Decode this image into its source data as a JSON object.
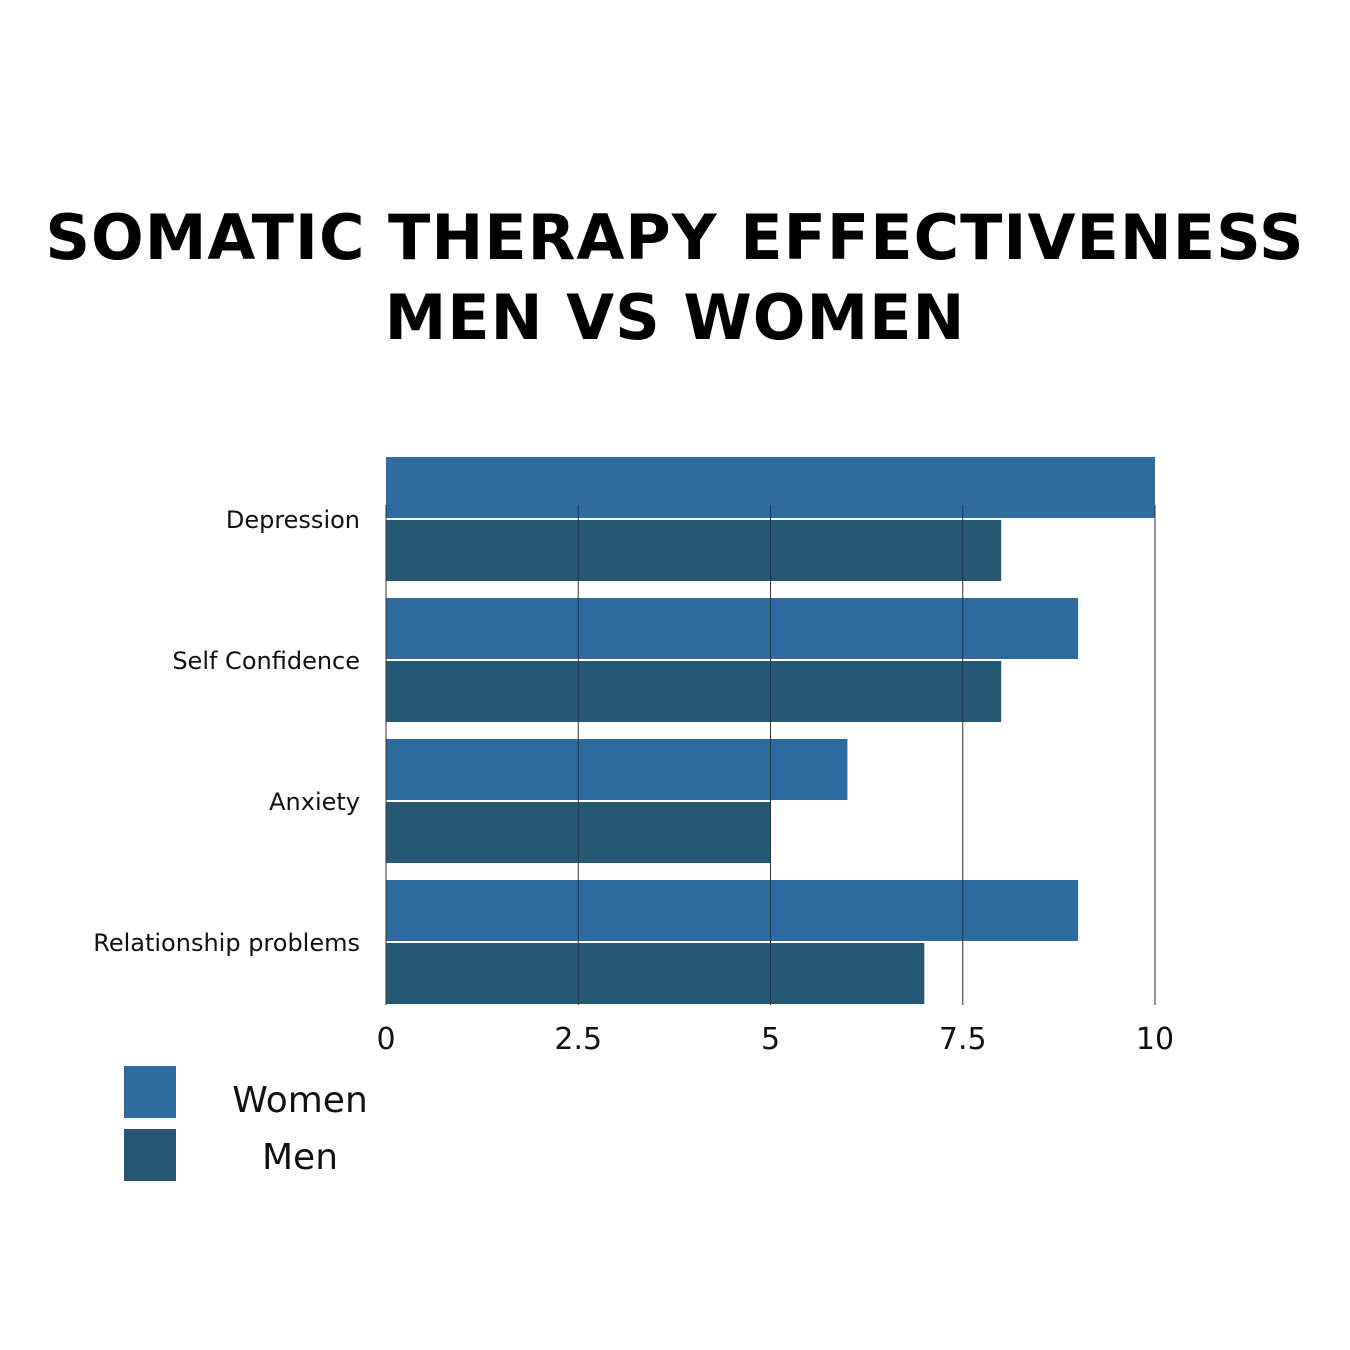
{
  "chart_data": {
    "type": "bar",
    "orientation": "horizontal",
    "title": "SOMATIC THERAPY EFFECTIVENESS",
    "subtitle": "MEN VS WOMEN",
    "categories": [
      "Depression",
      "Self Confidence",
      "Anxiety",
      "Relationship problems"
    ],
    "series": [
      {
        "name": "Women",
        "color": "#2f6b9f",
        "values": [
          10,
          9,
          6,
          9
        ]
      },
      {
        "name": "Men",
        "color": "#265873",
        "values": [
          8,
          8,
          5,
          7
        ]
      }
    ],
    "xlim": [
      0,
      10
    ],
    "xticks": [
      "0",
      "2.5",
      "5",
      "7.5",
      "10"
    ],
    "xtick_values": [
      0,
      2.5,
      5,
      7.5,
      10
    ],
    "grid": true,
    "legend_position": "bottom-left"
  }
}
